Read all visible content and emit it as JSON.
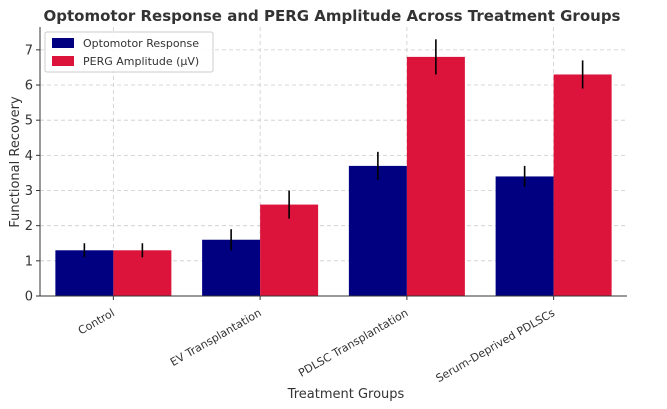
{
  "chart_data": {
    "type": "bar",
    "title": "Optomotor Response and PERG Amplitude Across Treatment Groups",
    "xlabel": "Treatment Groups",
    "ylabel": "Functional Recovery",
    "categories": [
      "Control",
      "EV Transplantation",
      "PDLSC Transplantation",
      "Serum-Deprived PDLSCs"
    ],
    "series": [
      {
        "name": "Optomotor Response",
        "color": "#000080",
        "values": [
          1.3,
          1.6,
          3.7,
          3.4
        ],
        "errors": [
          0.2,
          0.3,
          0.4,
          0.3
        ]
      },
      {
        "name": "PERG Amplitude (μV)",
        "color": "#dc143c",
        "values": [
          1.3,
          2.6,
          6.8,
          6.3
        ],
        "errors": [
          0.2,
          0.4,
          0.5,
          0.4
        ]
      }
    ],
    "ylim": [
      0,
      7.65
    ],
    "yticks": [
      0,
      1,
      2,
      3,
      4,
      5,
      6,
      7
    ],
    "ytick_labels": [
      "0",
      "1",
      "2",
      "3",
      "4",
      "5",
      "6",
      "7"
    ],
    "grid": true,
    "legend_position": "top-left"
  }
}
